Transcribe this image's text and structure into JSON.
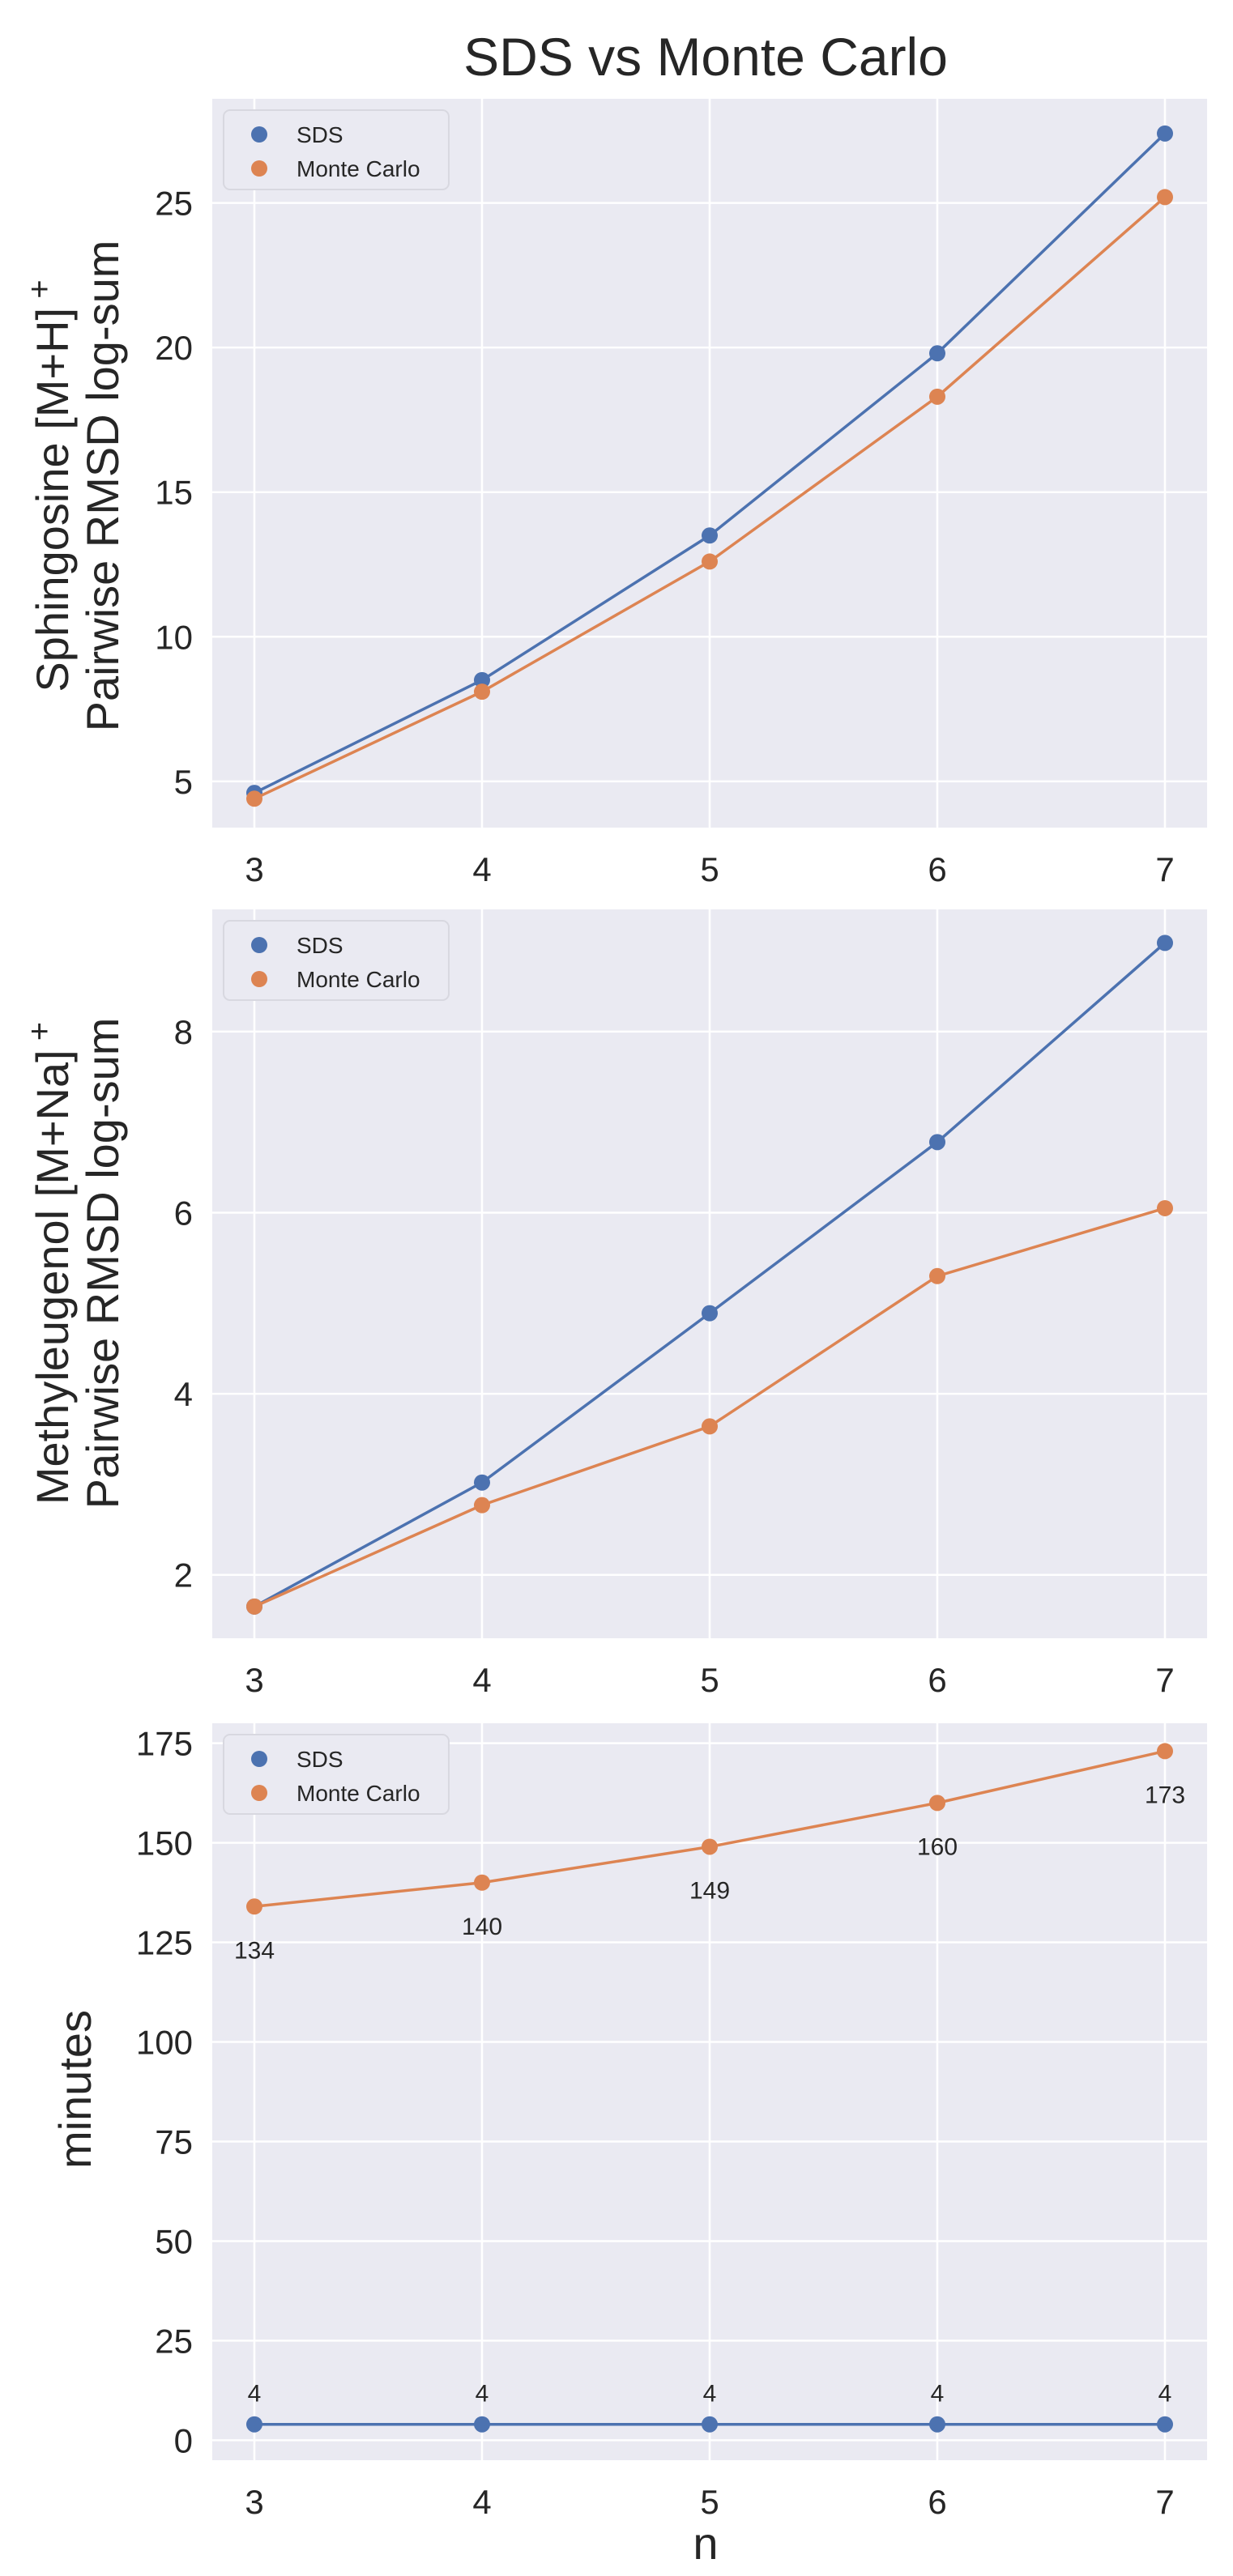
{
  "figure": {
    "title": "SDS vs Monte Carlo",
    "xlabel": "n"
  },
  "colors": {
    "sds": "#4C72B0",
    "mc": "#DD8452",
    "panel_bg": "#EAEAF2",
    "grid": "#FFFFFF",
    "text": "#262626"
  },
  "chart_data": [
    {
      "type": "line",
      "ylabel_line1": "Sphingosine [M+H]",
      "ylabel_sup": "+",
      "ylabel_line2": "Pairwise RMSD log-sum",
      "categories": [
        3,
        4,
        5,
        6,
        7
      ],
      "ylim": [
        3.4,
        28.6
      ],
      "yticks": [
        5,
        10,
        15,
        20,
        25
      ],
      "legend_position": "top-left",
      "series": [
        {
          "name": "SDS",
          "values": [
            4.6,
            8.5,
            13.5,
            19.8,
            27.4
          ]
        },
        {
          "name": "Monte Carlo",
          "values": [
            4.4,
            8.1,
            12.6,
            18.3,
            25.2
          ]
        }
      ]
    },
    {
      "type": "line",
      "ylabel_line1": "Methyleugenol [M+Na]",
      "ylabel_sup": "+",
      "ylabel_line2": "Pairwise RMSD log-sum",
      "categories": [
        3,
        4,
        5,
        6,
        7
      ],
      "ylim": [
        1.3,
        9.35
      ],
      "yticks": [
        2,
        4,
        6,
        8
      ],
      "legend_position": "top-left",
      "series": [
        {
          "name": "SDS",
          "values": [
            1.65,
            3.02,
            4.89,
            6.78,
            8.98
          ]
        },
        {
          "name": "Monte Carlo",
          "values": [
            1.65,
            2.77,
            3.64,
            5.3,
            6.05
          ]
        }
      ]
    },
    {
      "type": "line",
      "ylabel_line1": "minutes",
      "categories": [
        3,
        4,
        5,
        6,
        7
      ],
      "ylim": [
        -5,
        180
      ],
      "yticks": [
        0,
        25,
        50,
        75,
        100,
        125,
        150,
        175
      ],
      "legend_position": "top-left",
      "series": [
        {
          "name": "SDS",
          "values": [
            4,
            4,
            4,
            4,
            4
          ],
          "data_labels": [
            "4",
            "4",
            "4",
            "4",
            "4"
          ]
        },
        {
          "name": "Monte Carlo",
          "values": [
            134,
            140,
            149,
            160,
            173
          ],
          "data_labels": [
            "134",
            "140",
            "149",
            "160",
            "173"
          ]
        }
      ]
    }
  ]
}
